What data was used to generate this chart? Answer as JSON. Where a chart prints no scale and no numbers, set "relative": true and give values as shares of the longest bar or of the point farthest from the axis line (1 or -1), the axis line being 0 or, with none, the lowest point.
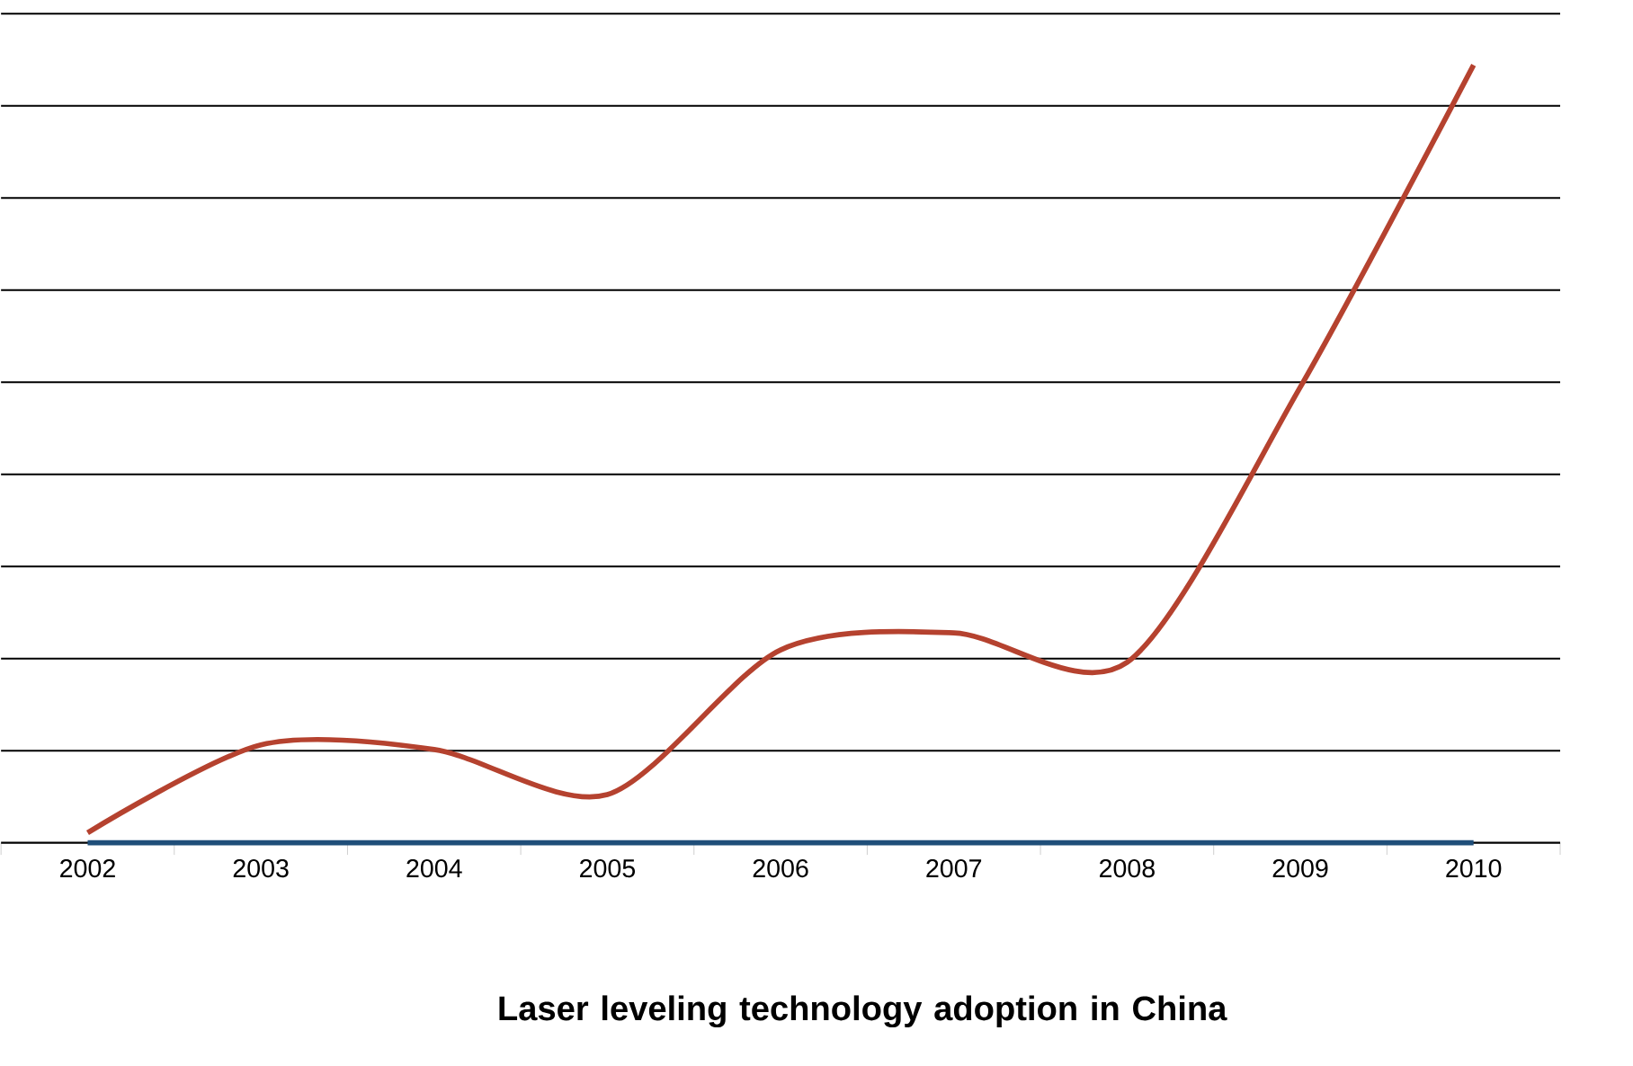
{
  "chart_data": {
    "type": "line",
    "title": "Laser leveling technology adoption in China",
    "categories": [
      "2002",
      "2003",
      "2004",
      "2005",
      "2006",
      "2007",
      "2008",
      "2009",
      "2010"
    ],
    "relative": true,
    "grid": "y",
    "series": [
      {
        "color": "#b5422f",
        "values": [
          0.013,
          0.126,
          0.12,
          0.062,
          0.248,
          0.27,
          0.232,
          0.586,
          1
        ]
      },
      {
        "color": "#1f4e79",
        "values": [
          0,
          0,
          0,
          0,
          0,
          0,
          0,
          0,
          0
        ]
      }
    ]
  }
}
